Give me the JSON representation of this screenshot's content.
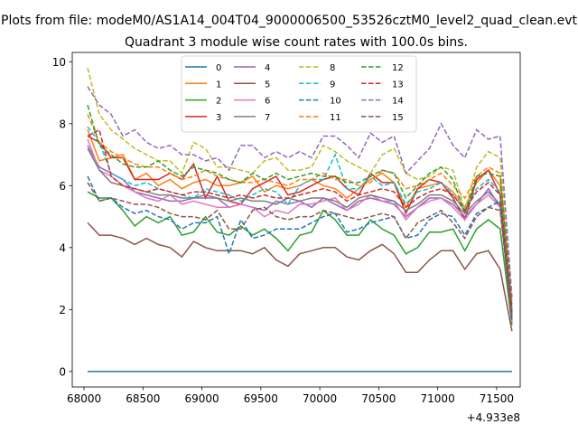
{
  "chart_data": {
    "type": "line",
    "suptitle": "Plots from file: modeM0/AS1A14_004T04_9000006500_53526cztM0_level2_quad_clean.evt",
    "title": "Quadrant 3 module wise count rates with 100.0s bins.",
    "xlabel": "",
    "ylabel": "",
    "x_offset_label": "+4.933e8",
    "xlim": [
      67900,
      71700
    ],
    "ylim": [
      -0.5,
      10.3
    ],
    "xticks": [
      68000,
      68500,
      69000,
      69500,
      70000,
      70500,
      71000,
      71500
    ],
    "yticks": [
      0,
      2,
      4,
      6,
      8,
      10
    ],
    "legend": {
      "position": "top-center",
      "ncol": 4
    },
    "x": [
      68030,
      68130,
      68230,
      68330,
      68430,
      68530,
      68630,
      68730,
      68830,
      68930,
      69030,
      69130,
      69230,
      69330,
      69430,
      69530,
      69630,
      69730,
      69830,
      69930,
      70030,
      70130,
      70230,
      70330,
      70430,
      70530,
      70630,
      70730,
      70830,
      70930,
      71030,
      71130,
      71230,
      71330,
      71430,
      71530,
      71630
    ],
    "series": [
      {
        "name": "0",
        "color": "#1f77b4",
        "dash": "solid",
        "values": [
          0,
          0,
          0,
          0,
          0,
          0,
          0,
          0,
          0,
          0,
          0,
          0,
          0,
          0,
          0,
          0,
          0,
          0,
          0,
          0,
          0,
          0,
          0,
          0,
          0,
          0,
          0,
          0,
          0,
          0,
          0,
          0,
          0,
          0,
          0,
          0,
          0
        ]
      },
      {
        "name": "1",
        "color": "#ff7f0e",
        "dash": "solid",
        "values": [
          7.8,
          6.8,
          6.9,
          7.0,
          6.2,
          6.4,
          6.0,
          6.2,
          5.9,
          6.1,
          6.2,
          6.0,
          6.0,
          6.1,
          6.3,
          5.8,
          6.0,
          5.9,
          6.0,
          6.2,
          6.0,
          5.9,
          5.6,
          5.9,
          6.2,
          6.4,
          6.1,
          5.3,
          5.9,
          6.0,
          6.1,
          5.8,
          5.3,
          6.1,
          6.5,
          6.0,
          2.0
        ]
      },
      {
        "name": "2",
        "color": "#2ca02c",
        "dash": "solid",
        "values": [
          5.8,
          5.6,
          5.6,
          5.2,
          4.7,
          5.0,
          4.8,
          5.0,
          4.4,
          4.5,
          5.0,
          4.5,
          4.4,
          4.7,
          4.4,
          4.6,
          4.3,
          3.9,
          4.4,
          4.5,
          5.2,
          4.9,
          4.4,
          4.4,
          4.9,
          4.6,
          4.4,
          3.8,
          4.0,
          4.5,
          4.5,
          4.6,
          3.9,
          4.6,
          4.9,
          4.6,
          1.5
        ]
      },
      {
        "name": "3",
        "color": "#d62728",
        "dash": "solid",
        "values": [
          7.6,
          7.4,
          6.9,
          6.9,
          6.2,
          6.2,
          6.2,
          6.4,
          6.2,
          6.7,
          5.6,
          6.3,
          5.5,
          5.4,
          5.9,
          6.1,
          6.3,
          5.7,
          5.8,
          6.0,
          6.2,
          6.3,
          5.9,
          5.7,
          6.4,
          6.1,
          6.1,
          5.1,
          5.9,
          6.2,
          6.1,
          5.6,
          4.9,
          6.2,
          6.5,
          5.7,
          1.8
        ]
      },
      {
        "name": "4",
        "color": "#9467bd",
        "dash": "solid",
        "values": [
          7.3,
          6.6,
          6.4,
          6.2,
          5.8,
          5.7,
          5.6,
          5.5,
          5.5,
          5.6,
          5.6,
          5.6,
          5.3,
          5.4,
          5.3,
          5.2,
          5.5,
          5.4,
          5.5,
          5.3,
          5.6,
          5.4,
          5.2,
          5.5,
          5.6,
          5.5,
          5.4,
          5.0,
          5.3,
          5.6,
          5.6,
          5.4,
          5.0,
          5.4,
          5.9,
          5.3,
          1.7
        ]
      },
      {
        "name": "5",
        "color": "#8c564b",
        "dash": "solid",
        "values": [
          4.8,
          4.4,
          4.4,
          4.3,
          4.1,
          4.3,
          4.1,
          4.0,
          3.7,
          4.2,
          4.0,
          3.9,
          3.9,
          3.9,
          3.8,
          4.0,
          3.6,
          3.4,
          3.8,
          3.9,
          4.0,
          4.0,
          3.7,
          3.6,
          3.9,
          4.1,
          3.8,
          3.2,
          3.2,
          3.6,
          3.9,
          3.9,
          3.3,
          3.8,
          3.9,
          3.3,
          1.3
        ]
      },
      {
        "name": "6",
        "color": "#e377c2",
        "dash": "solid",
        "values": [
          7.5,
          6.5,
          6.3,
          6.0,
          5.8,
          5.6,
          5.5,
          5.7,
          5.4,
          5.5,
          5.4,
          5.3,
          5.3,
          5.4,
          5.3,
          5.0,
          5.2,
          5.1,
          5.4,
          5.4,
          5.5,
          5.6,
          5.2,
          5.4,
          5.7,
          5.5,
          5.5,
          4.9,
          5.3,
          5.5,
          5.6,
          5.3,
          4.9,
          5.4,
          5.7,
          5.3,
          1.6
        ]
      },
      {
        "name": "7",
        "color": "#7f7f7f",
        "dash": "solid",
        "values": [
          7.2,
          6.5,
          6.1,
          6.0,
          5.9,
          5.8,
          5.7,
          5.7,
          5.6,
          5.6,
          5.7,
          5.6,
          5.5,
          5.6,
          5.5,
          5.5,
          5.4,
          5.6,
          5.5,
          5.6,
          5.6,
          5.5,
          5.3,
          5.6,
          5.7,
          5.6,
          5.5,
          5.2,
          5.4,
          5.7,
          5.7,
          5.5,
          5.1,
          5.5,
          5.8,
          5.4,
          1.7
        ]
      },
      {
        "name": "8",
        "color": "#bcbd22",
        "dash": "dashed",
        "values": [
          9.8,
          8.3,
          7.8,
          7.5,
          7.2,
          7.0,
          6.8,
          6.8,
          6.4,
          7.4,
          7.2,
          6.6,
          6.6,
          6.5,
          6.4,
          6.8,
          6.9,
          6.5,
          6.5,
          6.6,
          7.3,
          7.1,
          6.8,
          6.6,
          6.4,
          7.0,
          7.2,
          6.4,
          6.2,
          6.3,
          6.6,
          6.5,
          5.2,
          6.6,
          7.1,
          6.9,
          2.3
        ]
      },
      {
        "name": "9",
        "color": "#17becf",
        "dash": "dashed",
        "values": [
          7.9,
          7.4,
          6.4,
          6.2,
          6.0,
          6.1,
          5.9,
          5.8,
          5.7,
          5.6,
          5.9,
          5.8,
          5.7,
          5.5,
          5.7,
          5.9,
          5.8,
          5.4,
          6.0,
          6.2,
          6.2,
          7.0,
          5.9,
          5.9,
          6.3,
          6.0,
          6.1,
          5.4,
          5.8,
          5.9,
          6.1,
          5.7,
          5.2,
          5.9,
          6.2,
          5.8,
          2.0
        ]
      },
      {
        "name": "10",
        "color": "#1f77b4",
        "dash": "dashed",
        "values": [
          6.3,
          5.5,
          5.6,
          5.3,
          5.1,
          5.2,
          5.0,
          4.9,
          4.6,
          4.8,
          4.8,
          5.0,
          3.8,
          4.9,
          4.3,
          4.4,
          4.6,
          4.6,
          4.6,
          4.8,
          5.0,
          5.1,
          4.5,
          4.6,
          4.8,
          4.9,
          5.0,
          4.3,
          4.4,
          4.9,
          5.1,
          5.0,
          4.4,
          5.1,
          5.3,
          5.5,
          1.6
        ]
      },
      {
        "name": "11",
        "color": "#ff7f0e",
        "dash": "dashed",
        "values": [
          8.3,
          7.4,
          7.1,
          6.9,
          6.7,
          6.6,
          6.6,
          6.4,
          6.2,
          6.3,
          6.5,
          6.3,
          6.2,
          6.1,
          6.1,
          6.2,
          6.1,
          6.0,
          6.2,
          6.2,
          6.4,
          6.2,
          6.2,
          6.0,
          6.1,
          6.5,
          6.4,
          5.9,
          6.0,
          6.2,
          6.4,
          6.0,
          5.6,
          6.3,
          6.6,
          6.4,
          2.2
        ]
      },
      {
        "name": "12",
        "color": "#2ca02c",
        "dash": "dashed",
        "values": [
          8.6,
          7.3,
          7.0,
          6.7,
          6.6,
          6.6,
          6.8,
          6.5,
          6.3,
          6.6,
          6.5,
          6.4,
          6.2,
          6.1,
          6.4,
          6.2,
          6.4,
          6.2,
          6.3,
          6.4,
          6.3,
          6.3,
          6.1,
          6.1,
          6.3,
          6.5,
          6.4,
          5.6,
          6.0,
          6.4,
          6.6,
          6.2,
          5.1,
          6.3,
          6.4,
          6.3,
          2.1
        ]
      },
      {
        "name": "13",
        "color": "#d62728",
        "dash": "dashed",
        "values": [
          7.6,
          7.8,
          6.3,
          6.0,
          5.9,
          5.8,
          5.9,
          5.8,
          5.7,
          5.8,
          5.8,
          5.7,
          5.6,
          5.7,
          5.6,
          5.7,
          5.6,
          5.6,
          5.7,
          5.8,
          5.9,
          5.8,
          5.5,
          5.7,
          5.8,
          5.9,
          5.8,
          5.3,
          5.6,
          5.8,
          5.9,
          5.7,
          5.2,
          5.8,
          6.1,
          5.7,
          1.9
        ]
      },
      {
        "name": "14",
        "color": "#9467bd",
        "dash": "dashed",
        "values": [
          9.2,
          8.6,
          8.3,
          7.6,
          7.8,
          7.4,
          7.2,
          7.3,
          7.0,
          7.0,
          6.8,
          6.9,
          6.5,
          7.3,
          7.3,
          6.9,
          7.1,
          6.9,
          7.1,
          6.9,
          7.6,
          7.6,
          7.3,
          6.9,
          7.7,
          7.4,
          7.6,
          6.4,
          6.8,
          7.2,
          8.0,
          7.3,
          6.9,
          7.8,
          7.5,
          7.6,
          2.4
        ]
      },
      {
        "name": "15",
        "color": "#8c564b",
        "dash": "dashed",
        "values": [
          6.1,
          5.5,
          5.6,
          5.5,
          5.4,
          5.4,
          5.3,
          5.1,
          5.0,
          5.0,
          4.9,
          5.2,
          4.6,
          4.6,
          5.2,
          5.3,
          5.0,
          4.9,
          5.0,
          5.0,
          5.2,
          5.1,
          5.0,
          4.9,
          5.0,
          5.1,
          5.0,
          4.3,
          4.8,
          5.0,
          5.2,
          4.8,
          4.3,
          5.0,
          5.3,
          5.2,
          1.7
        ]
      }
    ]
  }
}
